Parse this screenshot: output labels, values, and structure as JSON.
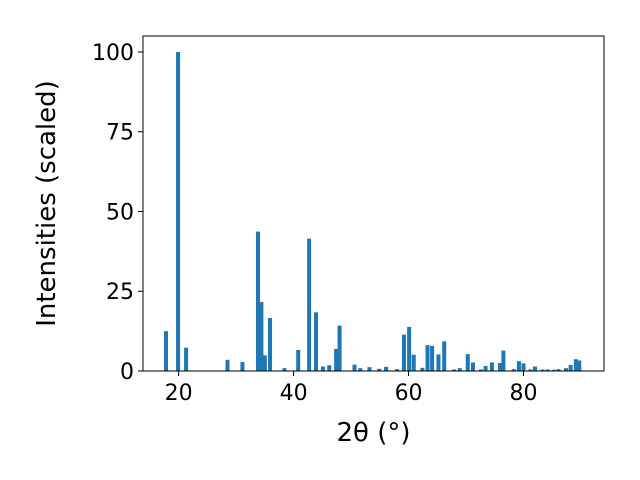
{
  "chart_data": {
    "type": "bar",
    "xlabel": "2θ (°)",
    "ylabel": "Intensities (scaled)",
    "xlim": [
      13.8,
      94.0
    ],
    "ylim": [
      0,
      105
    ],
    "xticks": [
      20,
      40,
      60,
      80
    ],
    "yticks": [
      0,
      25,
      50,
      75,
      100
    ],
    "grid": false,
    "bar_color": "#1f77b4",
    "bar_width": 0.7,
    "x": [
      17.8,
      19.9,
      21.3,
      28.5,
      31.1,
      33.8,
      34.4,
      35.0,
      35.9,
      38.4,
      40.8,
      42.7,
      43.9,
      45.1,
      46.2,
      47.4,
      48.0,
      50.6,
      51.6,
      53.2,
      54.9,
      56.1,
      58.0,
      59.2,
      60.1,
      60.9,
      62.4,
      63.3,
      64.1,
      65.2,
      66.2,
      67.9,
      68.9,
      70.3,
      71.2,
      72.6,
      73.4,
      74.5,
      75.9,
      76.5,
      78.3,
      79.2,
      80.0,
      81.2,
      82.0,
      83.3,
      84.2,
      85.3,
      86.1,
      87.4,
      88.2,
      89.1,
      89.7
    ],
    "values": [
      12.5,
      100,
      7.3,
      3.5,
      2.8,
      43.7,
      21.6,
      4.9,
      16.6,
      0.9,
      6.6,
      41.5,
      18.4,
      1.4,
      1.8,
      6.9,
      14.2,
      2.0,
      0.9,
      1.2,
      0.7,
      1.3,
      0.6,
      11.4,
      13.8,
      5.1,
      1.0,
      8.1,
      7.9,
      5.2,
      9.3,
      0.5,
      0.9,
      5.3,
      2.7,
      0.5,
      1.6,
      2.7,
      2.5,
      6.4,
      0.6,
      3.1,
      2.4,
      0.5,
      1.4,
      0.5,
      0.5,
      0.4,
      0.6,
      0.9,
      1.9,
      3.7,
      3.3
    ]
  }
}
